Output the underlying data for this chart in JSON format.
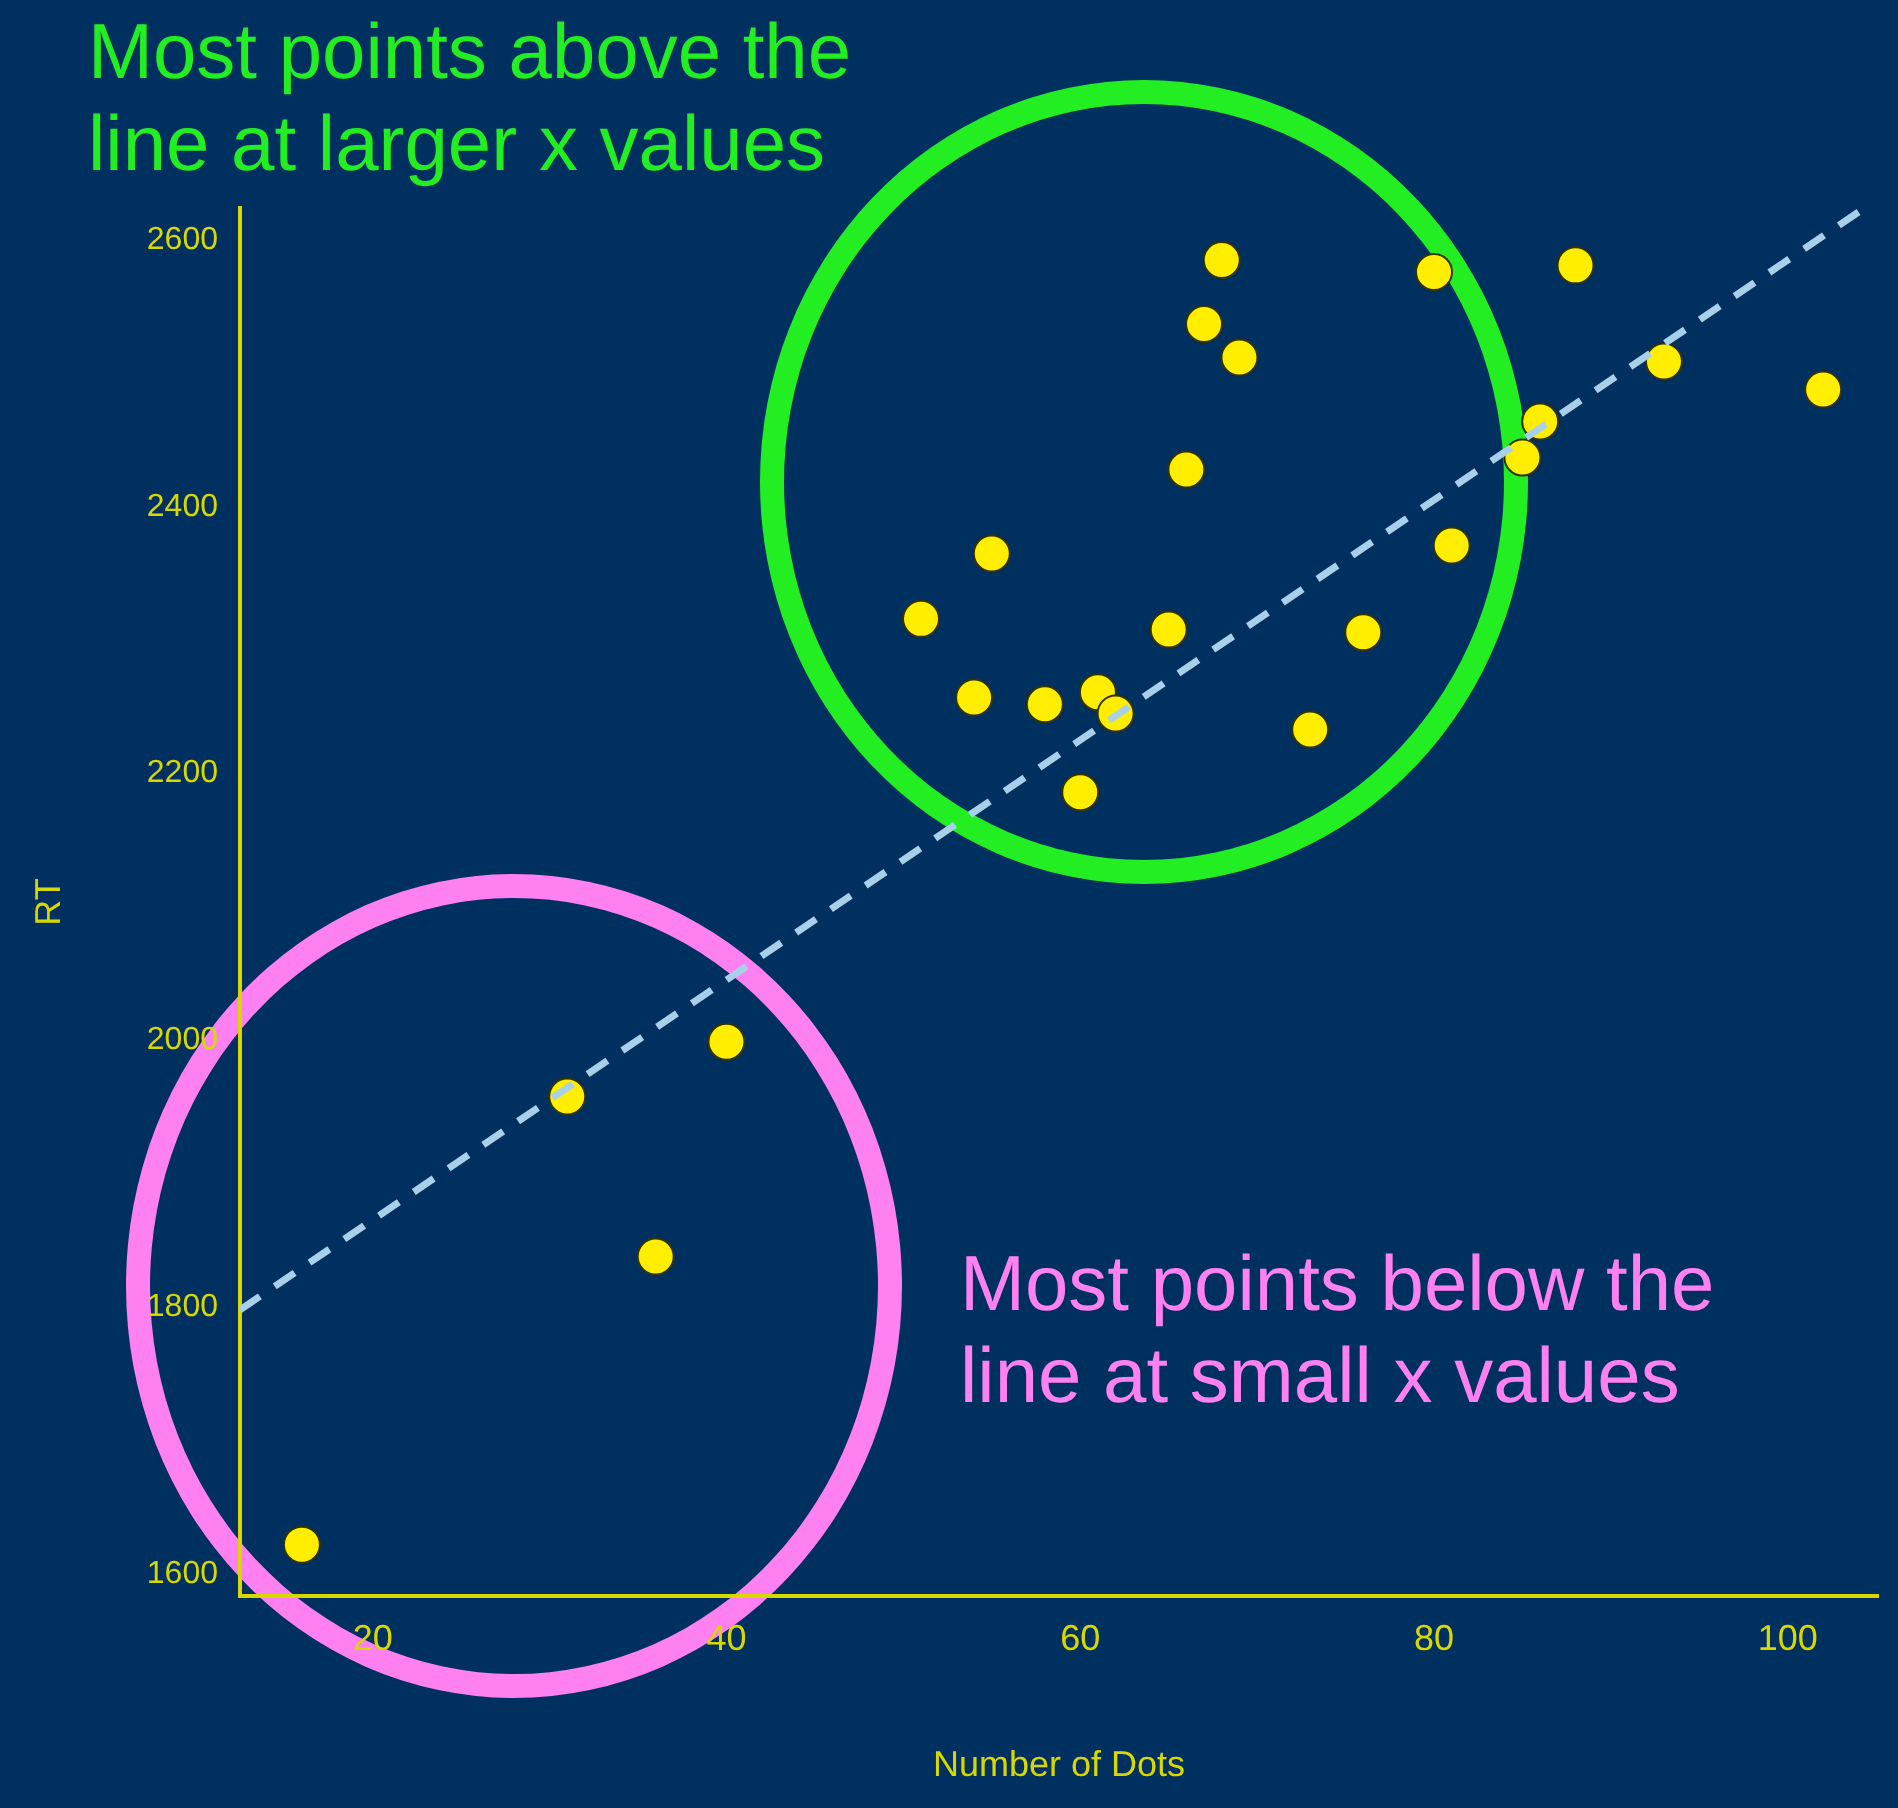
{
  "chart_data": {
    "type": "scatter",
    "xlabel": "Number of Dots",
    "ylabel": "RT",
    "xlim": [
      12.5,
      105.1
    ],
    "xticks": [
      20,
      40,
      60,
      80,
      100
    ],
    "ylim": [
      1583.5,
      2624
    ],
    "yticks": [
      1600,
      1800,
      2000,
      2200,
      2400,
      2600
    ],
    "grid": false,
    "legend": false,
    "marker": "circle",
    "annotations": [
      "Most points above the line at larger x values",
      "Most points below the line at small x values"
    ],
    "series": [
      {
        "color": "#ffee00",
        "x": [
          16,
          31,
          36,
          40,
          51,
          54,
          55,
          58,
          60,
          61,
          62,
          65,
          66,
          67,
          68,
          69,
          73,
          76,
          80,
          81,
          85,
          86,
          88,
          93,
          102
        ],
        "values": [
          1622,
          1958,
          1838,
          1999,
          2316,
          2257,
          2365,
          2252,
          2186,
          2261,
          2245,
          2308,
          2428,
          2537,
          2585,
          2512,
          2233,
          2306,
          2576,
          2371,
          2437,
          2464,
          2581,
          2509,
          2488
        ]
      },
      {
        "type": "line",
        "color": "#a8d0e8",
        "line_style": "dashed",
        "marker": "none",
        "x": [
          12.5,
          104
        ],
        "values": [
          1798,
          2621
        ]
      }
    ]
  }
}
